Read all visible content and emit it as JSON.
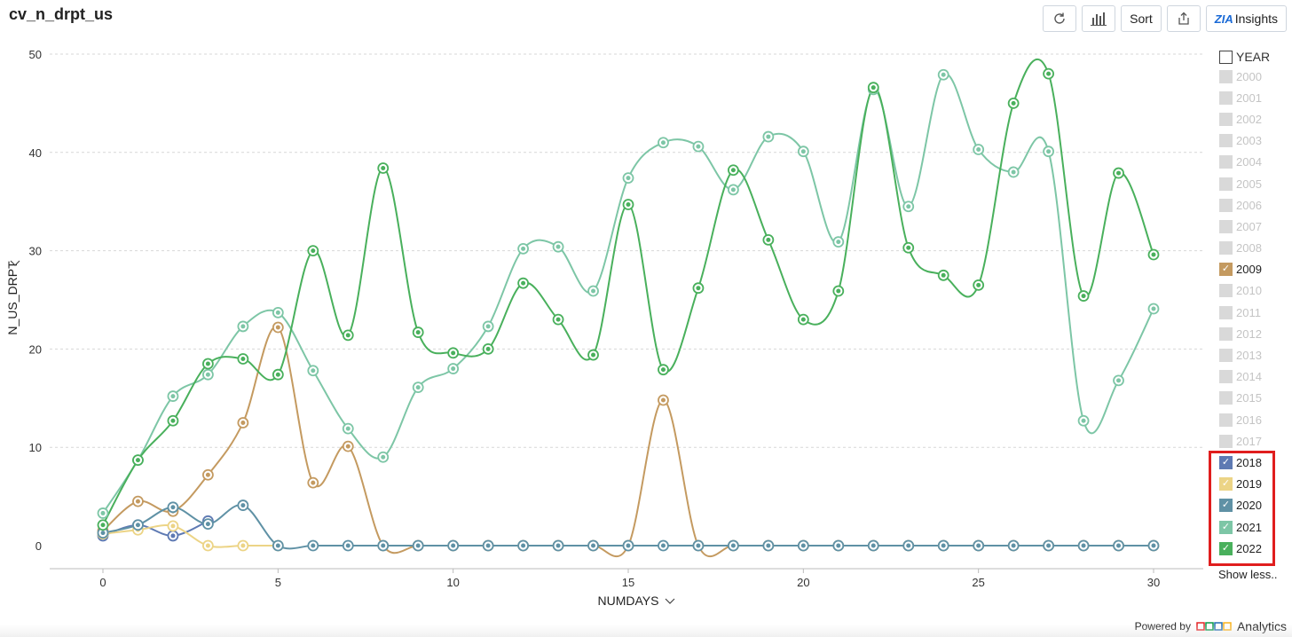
{
  "header": {
    "title": "cv_n_drpt_us"
  },
  "toolbar": {
    "sort_label": "Sort",
    "insights_label": "Insights",
    "insights_logo": "ZIA"
  },
  "footer": {
    "powered_by": "Powered by",
    "brand": "Analytics"
  },
  "legend": {
    "header": "YEAR",
    "show_less": "Show less..",
    "items": [
      {
        "label": "2000",
        "on": false,
        "color": ""
      },
      {
        "label": "2001",
        "on": false,
        "color": ""
      },
      {
        "label": "2002",
        "on": false,
        "color": ""
      },
      {
        "label": "2003",
        "on": false,
        "color": ""
      },
      {
        "label": "2004",
        "on": false,
        "color": ""
      },
      {
        "label": "2005",
        "on": false,
        "color": ""
      },
      {
        "label": "2006",
        "on": false,
        "color": ""
      },
      {
        "label": "2007",
        "on": false,
        "color": ""
      },
      {
        "label": "2008",
        "on": false,
        "color": ""
      },
      {
        "label": "2009",
        "on": true,
        "color": "#c49a60"
      },
      {
        "label": "2010",
        "on": false,
        "color": ""
      },
      {
        "label": "2011",
        "on": false,
        "color": ""
      },
      {
        "label": "2012",
        "on": false,
        "color": ""
      },
      {
        "label": "2013",
        "on": false,
        "color": ""
      },
      {
        "label": "2014",
        "on": false,
        "color": ""
      },
      {
        "label": "2015",
        "on": false,
        "color": ""
      },
      {
        "label": "2016",
        "on": false,
        "color": ""
      },
      {
        "label": "2017",
        "on": false,
        "color": ""
      },
      {
        "label": "2018",
        "on": true,
        "color": "#5e7ab3"
      },
      {
        "label": "2019",
        "on": true,
        "color": "#ecd486"
      },
      {
        "label": "2020",
        "on": true,
        "color": "#5f91a5"
      },
      {
        "label": "2021",
        "on": true,
        "color": "#7dc6a6"
      },
      {
        "label": "2022",
        "on": true,
        "color": "#49b05c"
      }
    ]
  },
  "chart_data": {
    "type": "line",
    "title": "cv_n_drpt_us",
    "xlabel": "NUMDAYS",
    "ylabel": "N_US_DRPT",
    "xlim": [
      0,
      30
    ],
    "ylim": [
      0,
      50
    ],
    "xticks": [
      0,
      5,
      10,
      15,
      20,
      25,
      30
    ],
    "yticks": [
      0,
      10,
      20,
      30,
      40,
      50
    ],
    "grid": true,
    "legend_position": "right",
    "series": [
      {
        "name": "2009",
        "color": "#c49a60",
        "x": [
          0,
          1,
          2,
          3,
          4,
          5,
          6,
          7,
          8,
          9,
          10,
          11,
          12,
          13,
          14,
          15,
          16,
          17,
          18,
          19,
          20,
          21,
          22,
          23,
          24,
          25,
          26,
          27,
          28,
          29,
          30
        ],
        "y": [
          1.5,
          4.5,
          3.5,
          7.2,
          12.5,
          22.2,
          6.4,
          10.1,
          0,
          0,
          0,
          0,
          0,
          0,
          0,
          0,
          14.8,
          0,
          0,
          0,
          0,
          0,
          0,
          0,
          0,
          0,
          0,
          0,
          0,
          0,
          0
        ]
      },
      {
        "name": "2018",
        "color": "#5e7ab3",
        "x": [
          0,
          1,
          2,
          3
        ],
        "y": [
          1.0,
          2.1,
          1.0,
          2.5
        ]
      },
      {
        "name": "2019",
        "color": "#ecd486",
        "x": [
          0,
          1,
          2,
          3,
          4,
          5
        ],
        "y": [
          1.2,
          1.6,
          2.0,
          0,
          0,
          0
        ]
      },
      {
        "name": "2020",
        "color": "#5f91a5",
        "x": [
          0,
          1,
          2,
          3,
          4,
          5,
          6,
          7,
          8,
          9,
          10,
          11,
          12,
          13,
          14,
          15,
          16,
          17,
          18,
          19,
          20,
          21,
          22,
          23,
          24,
          25,
          26,
          27,
          28,
          29,
          30
        ],
        "y": [
          1.3,
          2.1,
          3.9,
          2.2,
          4.1,
          0,
          0,
          0,
          0,
          0,
          0,
          0,
          0,
          0,
          0,
          0,
          0,
          0,
          0,
          0,
          0,
          0,
          0,
          0,
          0,
          0,
          0,
          0,
          0,
          0,
          0
        ]
      },
      {
        "name": "2021",
        "color": "#7dc6a6",
        "x": [
          0,
          1,
          2,
          3,
          4,
          5,
          6,
          7,
          8,
          9,
          10,
          11,
          12,
          13,
          14,
          15,
          16,
          17,
          18,
          19,
          20,
          21,
          22,
          23,
          24,
          25,
          26,
          27,
          28,
          29,
          30
        ],
        "y": [
          3.3,
          8.7,
          15.2,
          17.4,
          22.3,
          23.7,
          17.8,
          11.9,
          9.0,
          16.1,
          18.0,
          22.3,
          30.2,
          30.4,
          25.9,
          37.4,
          41.0,
          40.6,
          36.2,
          41.6,
          40.1,
          30.9,
          46.4,
          34.5,
          47.9,
          40.3,
          38.0,
          40.1,
          12.7,
          16.8,
          24.1
        ]
      },
      {
        "name": "2022",
        "color": "#49b05c",
        "x": [
          0,
          1,
          2,
          3,
          4,
          5,
          6,
          7,
          8,
          9,
          10,
          11,
          12,
          13,
          14,
          15,
          16,
          17,
          18,
          19,
          20,
          21,
          22,
          23,
          24,
          25,
          26,
          27,
          28,
          29,
          30
        ],
        "y": [
          2.1,
          8.7,
          12.7,
          18.5,
          19.0,
          17.4,
          30.0,
          21.4,
          38.4,
          21.7,
          19.6,
          20.0,
          26.7,
          23.0,
          19.4,
          34.7,
          17.9,
          26.2,
          38.2,
          31.1,
          23.0,
          25.9,
          46.6,
          30.3,
          27.5,
          26.5,
          45.0,
          48.0,
          25.4,
          37.9,
          29.6
        ]
      }
    ]
  }
}
